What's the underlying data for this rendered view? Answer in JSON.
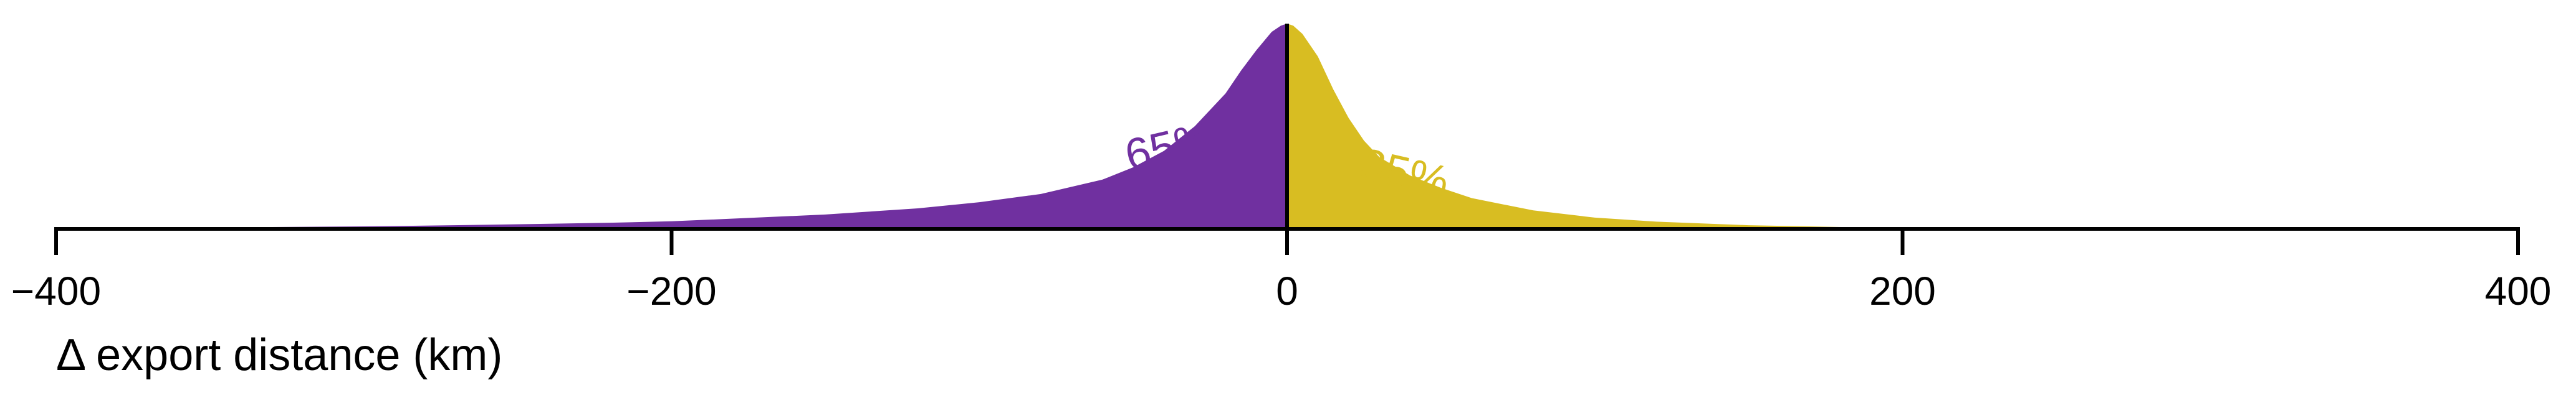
{
  "chart_data": {
    "type": "area",
    "xlabel": "Δ export distance (km)",
    "xlim": [
      -400,
      400
    ],
    "ylim": [
      0,
      1
    ],
    "grid": false,
    "x_ticks": [
      {
        "value": -400,
        "label": "−400"
      },
      {
        "value": -200,
        "label": "−200"
      },
      {
        "value": 0,
        "label": "0"
      },
      {
        "value": 200,
        "label": "200"
      },
      {
        "value": 400,
        "label": "400"
      }
    ],
    "series": [
      {
        "color": "#7030a0",
        "share_label": "65%",
        "x": [
          -400,
          -350,
          -300,
          -260,
          -220,
          -200,
          -180,
          -150,
          -120,
          -100,
          -80,
          -60,
          -50,
          -40,
          -30,
          -20,
          -15,
          -10,
          -5,
          -2,
          0
        ],
        "y": [
          0.003,
          0.007,
          0.012,
          0.02,
          0.03,
          0.037,
          0.05,
          0.07,
          0.1,
          0.13,
          0.17,
          0.24,
          0.3,
          0.38,
          0.5,
          0.66,
          0.77,
          0.87,
          0.96,
          0.99,
          1.0
        ]
      },
      {
        "color": "#d8bd22",
        "share_label": "35%",
        "x": [
          0,
          2,
          5,
          10,
          15,
          20,
          25,
          30,
          40,
          50,
          60,
          80,
          100,
          120,
          150,
          180,
          200,
          250,
          300,
          400
        ],
        "y": [
          1.0,
          0.99,
          0.95,
          0.84,
          0.68,
          0.54,
          0.43,
          0.35,
          0.26,
          0.2,
          0.15,
          0.09,
          0.055,
          0.035,
          0.018,
          0.009,
          0.006,
          0.003,
          0.002,
          0.0
        ]
      }
    ]
  }
}
